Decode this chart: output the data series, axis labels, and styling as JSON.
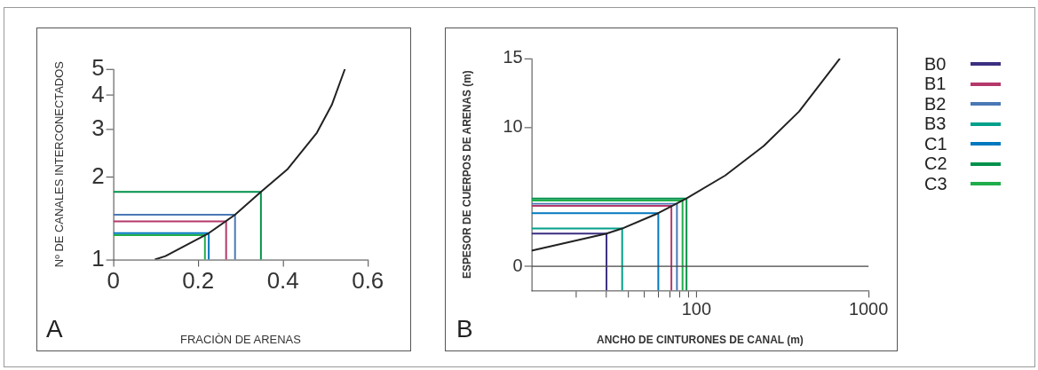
{
  "chart_data": [
    {
      "type": "line",
      "xlabel": "FRACIÒN DE ARENAS",
      "ylabel": "Nº DE CANALES INTERCONECTADOS",
      "log": "y",
      "xlim": [
        0,
        0.6
      ],
      "xticks": [
        0,
        0.2,
        0.4,
        0.6
      ],
      "ylim": [
        1,
        5
      ],
      "yticks": [
        1,
        2,
        3,
        4,
        5
      ],
      "annotations": [
        "A"
      ],
      "series": [
        {
          "color": "#222222",
          "x": [
            0.098,
            0.123,
            0.225,
            0.287,
            0.348,
            0.41,
            0.48,
            0.515,
            0.546
          ],
          "values": [
            1,
            1.03,
            1.25,
            1.46,
            1.77,
            2.14,
            2.92,
            3.69,
            5
          ]
        },
        {
          "color": "#00914a",
          "x": [
            0,
            0.348,
            0.348
          ],
          "values": [
            1.77,
            1.77,
            1
          ]
        },
        {
          "color": "#4a78b5",
          "x": [
            0,
            0.287,
            0.287
          ],
          "values": [
            1.46,
            1.46,
            1
          ]
        },
        {
          "color": "#b5386b",
          "x": [
            0,
            0.266,
            0.266
          ],
          "values": [
            1.38,
            1.38,
            1
          ]
        },
        {
          "color": "#0078bf",
          "x": [
            0,
            0.225,
            0.225
          ],
          "values": [
            1.25,
            1.25,
            1
          ]
        },
        {
          "color": "#1fad4b",
          "x": [
            0,
            0.216,
            0.216
          ],
          "values": [
            1.23,
            1.23,
            1
          ]
        }
      ]
    },
    {
      "type": "line",
      "xlabel": "ANCHO DE CINTURONES DE CANAL (m)",
      "ylabel": "ESPESOR DE CUERPOS DE ARENAS (m)",
      "log": "x",
      "xlim": [
        11,
        1000
      ],
      "xticks": [
        {
          "value": 20,
          "label": null
        },
        {
          "value": 30,
          "label": null
        },
        {
          "value": 40,
          "label": null
        },
        {
          "value": 50,
          "label": null
        },
        {
          "value": 60,
          "label": null
        },
        {
          "value": 70,
          "label": null
        },
        {
          "value": 80,
          "label": null
        },
        {
          "value": 90,
          "label": null
        },
        100,
        1000
      ],
      "ylim": [
        -1.75,
        15
      ],
      "yticks": [
        0,
        10,
        15
      ],
      "annotations": [
        "B"
      ],
      "legend": "right",
      "ref_lines": [
        {
          "axis": "y",
          "value": 0,
          "color": "#444444"
        }
      ],
      "series": [
        {
          "color": "#222222",
          "x": [
            11,
            30,
            37,
            60,
            87.5,
            147,
            246,
            395,
            682
          ],
          "values": [
            1.12,
            2.36,
            2.72,
            3.83,
            4.9,
            6.55,
            8.68,
            11.17,
            15
          ]
        },
        {
          "name": "B0",
          "color": "#3b2f80",
          "x": [
            11,
            30,
            30
          ],
          "values": [
            2.36,
            2.36,
            -1.75
          ]
        },
        {
          "name": "B1",
          "color": "#b5386b",
          "x": [
            11,
            71.5,
            71.5
          ],
          "values": [
            4.36,
            4.36,
            -1.75
          ]
        },
        {
          "name": "B2",
          "color": "#4a78b5",
          "x": [
            11,
            77,
            77
          ],
          "values": [
            4.51,
            4.51,
            -1.75
          ]
        },
        {
          "name": "B3",
          "color": "#00a08a",
          "x": [
            11,
            37,
            37
          ],
          "values": [
            2.72,
            2.72,
            -1.75
          ]
        },
        {
          "name": "C1",
          "color": "#0078bf",
          "x": [
            11,
            60,
            60
          ],
          "values": [
            3.83,
            3.83,
            -1.75
          ]
        },
        {
          "name": "C2",
          "color": "#00914a",
          "x": [
            11,
            87.5,
            87.5
          ],
          "values": [
            4.89,
            4.89,
            -1.75
          ]
        },
        {
          "name": "C3",
          "color": "#1fad4b",
          "x": [
            11,
            83,
            83
          ],
          "values": [
            4.74,
            4.74,
            -1.75
          ]
        }
      ]
    }
  ]
}
